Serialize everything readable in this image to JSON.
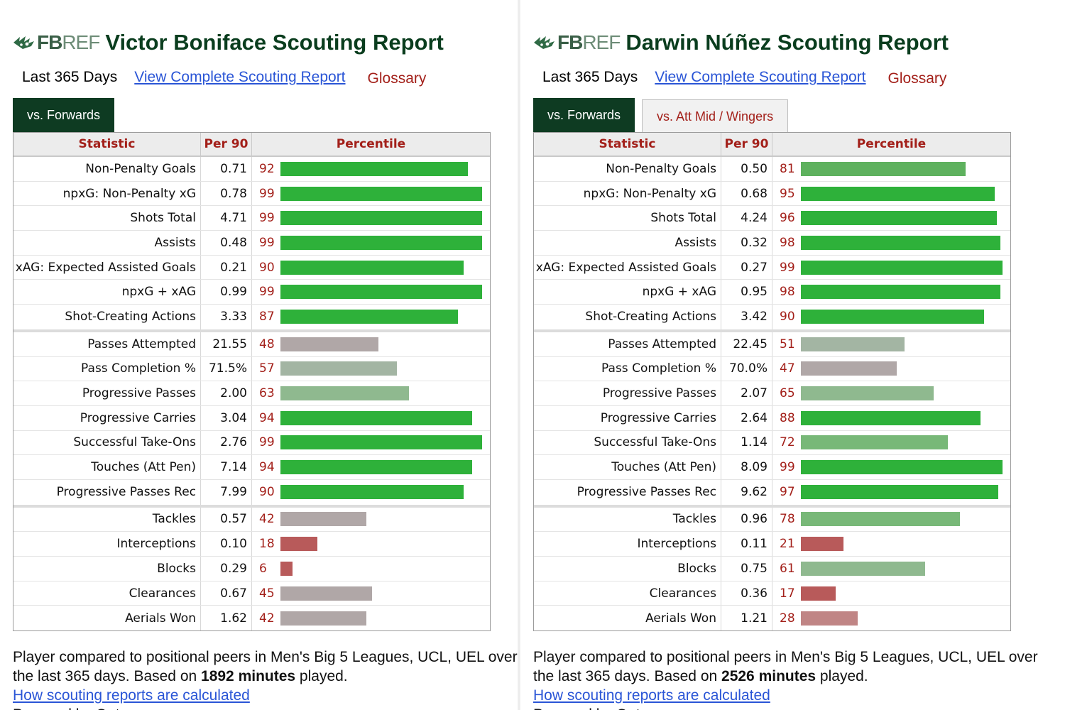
{
  "panels": [
    {
      "logo": {
        "fb": "FB",
        "ref": "REF"
      },
      "title": "Victor Boniface Scouting Report",
      "period": "Last 365 Days",
      "report_link": "View Complete Scouting Report",
      "glossary": "Glossary",
      "tabs": [
        {
          "label": "vs. Forwards",
          "active": true
        }
      ],
      "headers": {
        "stat": "Statistic",
        "per90": "Per 90",
        "pct": "Percentile"
      },
      "groups": [
        [
          {
            "stat": "Non-Penalty Goals",
            "per90": "0.71",
            "pct": 92
          },
          {
            "stat": "npxG: Non-Penalty xG",
            "per90": "0.78",
            "pct": 99
          },
          {
            "stat": "Shots Total",
            "per90": "4.71",
            "pct": 99
          },
          {
            "stat": "Assists",
            "per90": "0.48",
            "pct": 99
          },
          {
            "stat": "xAG: Expected Assisted Goals",
            "per90": "0.21",
            "pct": 90
          },
          {
            "stat": "npxG + xAG",
            "per90": "0.99",
            "pct": 99
          },
          {
            "stat": "Shot-Creating Actions",
            "per90": "3.33",
            "pct": 87
          }
        ],
        [
          {
            "stat": "Passes Attempted",
            "per90": "21.55",
            "pct": 48
          },
          {
            "stat": "Pass Completion %",
            "per90": "71.5%",
            "pct": 57
          },
          {
            "stat": "Progressive Passes",
            "per90": "2.00",
            "pct": 63
          },
          {
            "stat": "Progressive Carries",
            "per90": "3.04",
            "pct": 94
          },
          {
            "stat": "Successful Take-Ons",
            "per90": "2.76",
            "pct": 99
          },
          {
            "stat": "Touches (Att Pen)",
            "per90": "7.14",
            "pct": 94
          },
          {
            "stat": "Progressive Passes Rec",
            "per90": "7.99",
            "pct": 90
          }
        ],
        [
          {
            "stat": "Tackles",
            "per90": "0.57",
            "pct": 42
          },
          {
            "stat": "Interceptions",
            "per90": "0.10",
            "pct": 18
          },
          {
            "stat": "Blocks",
            "per90": "0.29",
            "pct": 6
          },
          {
            "stat": "Clearances",
            "per90": "0.67",
            "pct": 45
          },
          {
            "stat": "Aerials Won",
            "per90": "1.62",
            "pct": 42
          }
        ]
      ],
      "note": {
        "line1": "Player compared to positional peers in Men's Big 5 Leagues, UCL, UEL over",
        "line2_pre": "the last 365 days. Based on ",
        "minutes": "1892 minutes",
        "line2_post": " played.",
        "calc_link": "How scouting reports are calculated",
        "truncated": "Powered by Opta"
      }
    },
    {
      "logo": {
        "fb": "FB",
        "ref": "REF"
      },
      "title": "Darwin Núñez Scouting Report",
      "period": "Last 365 Days",
      "report_link": "View Complete Scouting Report",
      "glossary": "Glossary",
      "tabs": [
        {
          "label": "vs. Forwards",
          "active": true
        },
        {
          "label": "vs. Att Mid / Wingers",
          "active": false
        }
      ],
      "headers": {
        "stat": "Statistic",
        "per90": "Per 90",
        "pct": "Percentile"
      },
      "groups": [
        [
          {
            "stat": "Non-Penalty Goals",
            "per90": "0.50",
            "pct": 81
          },
          {
            "stat": "npxG: Non-Penalty xG",
            "per90": "0.68",
            "pct": 95
          },
          {
            "stat": "Shots Total",
            "per90": "4.24",
            "pct": 96
          },
          {
            "stat": "Assists",
            "per90": "0.32",
            "pct": 98
          },
          {
            "stat": "xAG: Expected Assisted Goals",
            "per90": "0.27",
            "pct": 99
          },
          {
            "stat": "npxG + xAG",
            "per90": "0.95",
            "pct": 98
          },
          {
            "stat": "Shot-Creating Actions",
            "per90": "3.42",
            "pct": 90
          }
        ],
        [
          {
            "stat": "Passes Attempted",
            "per90": "22.45",
            "pct": 51
          },
          {
            "stat": "Pass Completion %",
            "per90": "70.0%",
            "pct": 47
          },
          {
            "stat": "Progressive Passes",
            "per90": "2.07",
            "pct": 65
          },
          {
            "stat": "Progressive Carries",
            "per90": "2.64",
            "pct": 88
          },
          {
            "stat": "Successful Take-Ons",
            "per90": "1.14",
            "pct": 72
          },
          {
            "stat": "Touches (Att Pen)",
            "per90": "8.09",
            "pct": 99
          },
          {
            "stat": "Progressive Passes Rec",
            "per90": "9.62",
            "pct": 97
          }
        ],
        [
          {
            "stat": "Tackles",
            "per90": "0.96",
            "pct": 78
          },
          {
            "stat": "Interceptions",
            "per90": "0.11",
            "pct": 21
          },
          {
            "stat": "Blocks",
            "per90": "0.75",
            "pct": 61
          },
          {
            "stat": "Clearances",
            "per90": "0.36",
            "pct": 17
          },
          {
            "stat": "Aerials Won",
            "per90": "1.21",
            "pct": 28
          }
        ]
      ],
      "note": {
        "line1": "Player compared to positional peers in Men's Big 5 Leagues, UCL, UEL over",
        "line2_pre": "the last 365 days. Based on ",
        "minutes": "2526 minutes",
        "line2_post": " played.",
        "calc_link": "How scouting reports are calculated",
        "truncated": "Powered by Opta"
      }
    }
  ],
  "colors": {
    "title": "#0a3d1e",
    "link": "#2a55d6",
    "accent_red": "#a3201a",
    "tab_active": "#0e3b22",
    "bar_high": "#2eb13a",
    "bar_mid_green": "#8fb98f",
    "bar_grey": "#b0a7a7",
    "bar_low": "#b85a5a"
  }
}
